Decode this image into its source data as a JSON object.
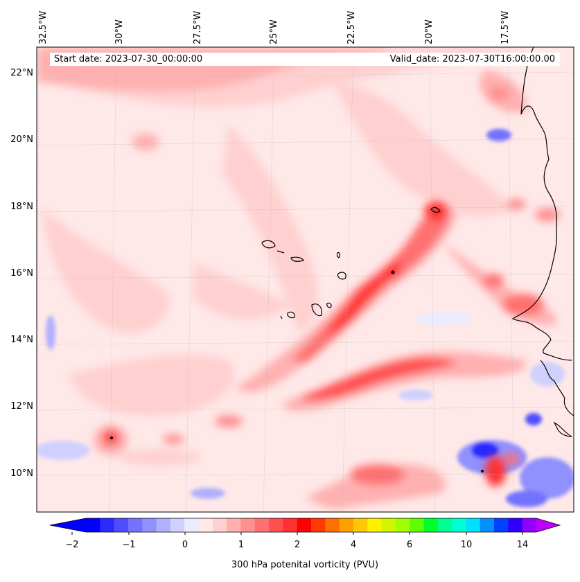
{
  "map": {
    "start_label": "Start date: 2023-07-30_00:00:00",
    "valid_label": "Valid_date: 2023-07-30T16:00:00.00",
    "lon_labels": [
      "32.5°W",
      "30°W",
      "27.5°W",
      "25°W",
      "22.5°W",
      "20°W",
      "17.5°W"
    ],
    "lat_labels": [
      "22°N",
      "20°N",
      "18°N",
      "16°N",
      "14°N",
      "12°N",
      "10°N"
    ],
    "lon_range": [
      -33,
      -15
    ],
    "lat_range": [
      9,
      23
    ],
    "variable": "300 hPa potential vorticity",
    "background_color": "#ffe8e8"
  },
  "colorbar": {
    "label": "300 hPa potenital vorticity (PVU)",
    "tick_labels": [
      "−2",
      "−1",
      "0",
      "1",
      "2",
      "4",
      "6",
      "10",
      "14"
    ],
    "colors": [
      "#0000ff",
      "#2a2aff",
      "#4e4eff",
      "#7272ff",
      "#9090ff",
      "#b0b0ff",
      "#d0d0ff",
      "#ececff",
      "#ffe8e8",
      "#ffd0d0",
      "#ffb0b0",
      "#ff9090",
      "#ff7070",
      "#ff5050",
      "#ff3030",
      "#ff0000",
      "#ff3a00",
      "#ff7000",
      "#ffa000",
      "#ffc800",
      "#fff000",
      "#d2f500",
      "#a0ff00",
      "#60ff00",
      "#00ff30",
      "#00ff90",
      "#00ffd0",
      "#00e0ff",
      "#0090ff",
      "#0040ff",
      "#3000ff",
      "#9000ff"
    ],
    "under_color": "#0000ff",
    "over_color": "#c000ff"
  }
}
